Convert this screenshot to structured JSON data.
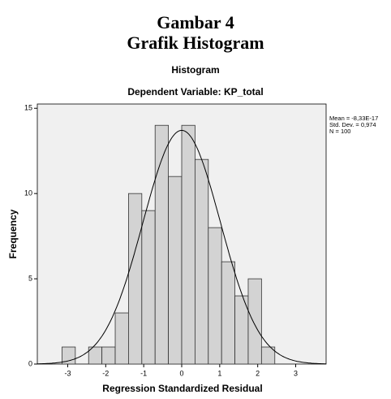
{
  "heading": [
    "Gambar 4",
    "Grafik Histogram"
  ],
  "chart_data": {
    "type": "histogram",
    "title": "Histogram",
    "subtitle": "Dependent Variable: KP_total",
    "x_label": "Regression Standardized Residual",
    "y_label": "Frequency",
    "bins": [
      -3.15,
      -2.8,
      -2.45,
      -2.1,
      -1.75,
      -1.4,
      -1.05,
      -0.7,
      -0.35,
      0,
      0.35,
      0.7,
      1.05,
      1.4,
      1.75,
      2.1,
      2.45
    ],
    "values": [
      1,
      0,
      1,
      1,
      3,
      10,
      9,
      14,
      11,
      14,
      12,
      8,
      6,
      4,
      5,
      1
    ],
    "color": "#d3d3d3",
    "xlim": [
      -3.8,
      3.8
    ],
    "xticks": [
      -3,
      -2,
      -1,
      0,
      1,
      2,
      3
    ],
    "ylim": [
      0,
      15.25
    ],
    "yticks": [
      0,
      5,
      10,
      15
    ],
    "normal_curve": true,
    "stats": [
      "Mean = -8,33E-17",
      "Std. Dev. = 0,974",
      "N = 100"
    ]
  }
}
